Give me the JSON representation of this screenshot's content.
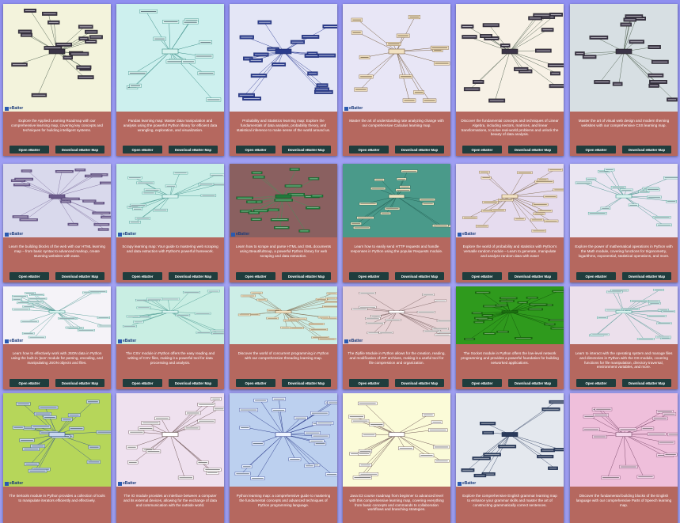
{
  "cards": [
    {
      "theme": "#f3f3dc",
      "desc": "Explore the Applied Learning Roadmap with our comprehensive learning map, covering key concepts and techniques for building intelligent systems.",
      "open": "Open eBatter",
      "download": "Download eBatter Map",
      "logo": "eBatter",
      "style": "dark"
    },
    {
      "theme": "#cdf0ee",
      "desc": "Pandas learning map: Master data manipulation and analysis using the powerful Python library for efficient data wrangling, exploration, and visualization.",
      "open": "Open eBatter",
      "download": "Download eBatter Map",
      "logo": "",
      "style": "light"
    },
    {
      "theme": "#e4e6f6",
      "desc": "Probability and Statistics learning map: Explore the fundamentals of data analysis, probability theory, and statistical inference to make sense of the world around us.",
      "open": "Open eBatter",
      "download": "Download eBatter Map",
      "logo": "",
      "style": "blue"
    },
    {
      "theme": "#e8e6f6",
      "desc": "Master the art of understanding rate analyzing change with our comprehensive Calculus learning map.",
      "open": "Open eBatter",
      "download": "Download eBatter Map",
      "logo": "eBatter",
      "style": "tan"
    },
    {
      "theme": "#f7f1e6",
      "desc": "Discover the fundamental concepts and techniques of Linear Algebra, including vectors, matrices, and linear transformations, to solve real-world problems and unlock the beauty of data analysis.",
      "open": "Open eBatter",
      "download": "Download eBatter Map",
      "logo": "",
      "style": "dark"
    },
    {
      "theme": "#d7dfe3",
      "desc": "Master the art of visual web design and modern theming websites with our comprehensive CSS learning map.",
      "open": "Open eBatter",
      "download": "Download eBatter Map",
      "logo": "",
      "style": "dark"
    },
    {
      "theme": "#d9d9ec",
      "desc": "Learn the building blocks of the web with our HTML learning map – from basic syntax to advanced markup, create stunning websites with ease.",
      "open": "Open eBatter",
      "download": "Download eBatter Map",
      "logo": "eBatter",
      "style": "purple"
    },
    {
      "theme": "#c9eee7",
      "desc": "Scrapy learning map: Your guide to mastering web scraping and data extraction with Python's powerful framework.",
      "open": "Open eBatter",
      "download": "Download eBatter Map",
      "logo": "eBatter",
      "style": "light"
    },
    {
      "theme": "#8a6060",
      "desc": "Learn how to scrape and parse HTML and XML documents using BeautifulSoup, a powerful Python library for web scraping and data extraction.",
      "open": "Open eBatter",
      "download": "Download eBatter Map",
      "logo": "eBatter",
      "style": "green"
    },
    {
      "theme": "#4a9a8a",
      "desc": "Learn how to easily send HTTP requests and handle responses in Python using the popular Requests module.",
      "open": "Open eBatter",
      "download": "Download eBatter Map",
      "logo": "",
      "style": "teal"
    },
    {
      "theme": "#e6dcef",
      "desc": "Explore the world of probability and statistics with Python's versatile random module – Learn to generate, manipulate and analyze random data with ease!",
      "open": "Open eBatter",
      "download": "Download eBatter Map",
      "logo": "eBatter",
      "style": "tan"
    },
    {
      "theme": "#ebe6f2",
      "desc": "Explore the power of mathematical operations in Python with the Math module, covering functions for trigonometry, logarithms, exponential, statistical operations, and more.",
      "open": "Open eBatter",
      "download": "Download eBatter Map",
      "logo": "",
      "style": "light"
    },
    {
      "theme": "#f5f3f8",
      "desc": "Learn how to effectively work with JSON data in Python using the built-in 'json' module for parsing, encoding, and manipulating JSON objects and files.",
      "open": "Open eBatter",
      "download": "Download eBatter Map",
      "logo": "eBatter",
      "style": "light"
    },
    {
      "theme": "#c9eee3",
      "desc": "The CSV module in Python offers the easy reading and writing of CSV files, making it a powerful tool for data processing and analysis.",
      "open": "Open eBatter",
      "download": "Download eBatter Map",
      "logo": "eBatter",
      "style": "light"
    },
    {
      "theme": "#cdeee7",
      "desc": "Discover the world of concurrent programming in Python with our comprehensive threading learning map.",
      "open": "Open eBatter",
      "download": "Download eBatter Map",
      "logo": "",
      "style": "tan"
    },
    {
      "theme": "#e7d2d5",
      "desc": "The Zipfile Module in Python allows for the creation, reading, and modification of ZIP archives, making it a useful tool for file compression and organization.",
      "open": "Open eBatter",
      "download": "Download eBatter Map",
      "logo": "eBatter",
      "style": "white"
    },
    {
      "theme": "#2f9a1d",
      "desc": "The Socket module in Python offers the low-level network programming and provides a powerful foundation for building networked applications.",
      "open": "Open eBatter",
      "download": "Download eBatter Map",
      "logo": "",
      "style": "green2"
    },
    {
      "theme": "#ece0ec",
      "desc": "Learn to interact with the operating system and manage files and directories in Python with the OS module, covering functions for file manipulation, directory traversal, environment variables, and more.",
      "open": "Open eBatter",
      "download": "Download eBatter Map",
      "logo": "",
      "style": "light"
    },
    {
      "theme": "#b6d65a",
      "desc": "The Itertools module in Python provides a collection of tools to manipulate iterators efficiently and effectively.",
      "open": "Open eBatter",
      "download": "Download eBatter Map",
      "logo": "eBatter",
      "style": "lime"
    },
    {
      "theme": "#efe1ef",
      "desc": "The IO module provides an interface between a computer and its external devices, allowing for the exchange of data and communication with the outside world.",
      "open": "Open eBatter",
      "download": "Download eBatter Map",
      "logo": "eBatter",
      "style": "white"
    },
    {
      "theme": "#bcd0ef",
      "desc": "Python learning map: a comprehensive guide to mastering the fundamental concepts and advanced techniques of Python programming language.",
      "open": "Open eBatter",
      "download": "Download eBatter Map",
      "logo": "",
      "style": "blue2"
    },
    {
      "theme": "#fbfbd8",
      "desc": "Java E3 course roadmap from beginner to advanced level with this comprehensive learning map, covering everything from basic concepts and commands to collaboration workflows and branching strategies.",
      "open": "Open eBatter",
      "download": "Download eBatter Map",
      "logo": "",
      "style": "white"
    },
    {
      "theme": "#e4e8ee",
      "desc": "Explore the comprehensive English grammar learning map to enhance your grammar skills and master the art of constructing grammatically correct sentences.",
      "open": "Open eBatter",
      "download": "Download eBatter Map",
      "logo": "eBatter",
      "style": "navy"
    },
    {
      "theme": "#efbfdb",
      "desc": "Discover the fundamental building blocks of the English language with our comprehensive Parts of Speech learning map.",
      "open": "Open eBatter",
      "download": "Download eBatter Map",
      "logo": "",
      "style": "pink"
    }
  ]
}
